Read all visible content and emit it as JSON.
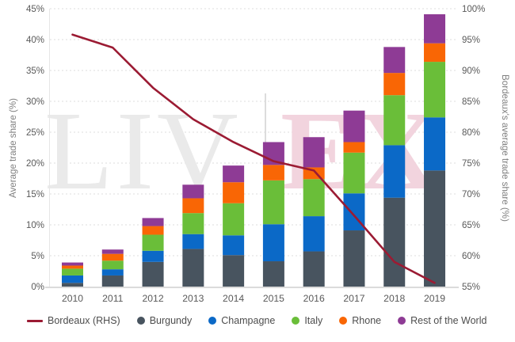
{
  "chart_data": {
    "type": "stacked_bar_with_line_combo",
    "title": "",
    "categories": [
      "2010",
      "2011",
      "2012",
      "2013",
      "2014",
      "2015",
      "2016",
      "2017",
      "2018",
      "2019"
    ],
    "bar_series": [
      {
        "name": "Burgundy",
        "color": "#48545f",
        "values": [
          0.6,
          1.8,
          4.0,
          6.1,
          5.1,
          4.1,
          5.7,
          9.1,
          14.4,
          18.8
        ]
      },
      {
        "name": "Champagne",
        "color": "#0b69c7",
        "values": [
          1.2,
          1.0,
          1.8,
          2.4,
          3.2,
          6.0,
          5.7,
          6.0,
          8.5,
          8.6
        ]
      },
      {
        "name": "Italy",
        "color": "#6abe39",
        "values": [
          1.1,
          1.4,
          2.6,
          3.4,
          5.2,
          7.1,
          6.0,
          6.6,
          8.1,
          9.0
        ]
      },
      {
        "name": "Rhone",
        "color": "#f96605",
        "values": [
          0.5,
          1.1,
          1.4,
          2.4,
          3.4,
          2.5,
          1.9,
          1.7,
          3.6,
          3.0
        ]
      },
      {
        "name": "Rest of the World",
        "color": "#8e3b95",
        "values": [
          0.5,
          0.7,
          1.3,
          2.2,
          2.7,
          3.7,
          4.9,
          5.1,
          4.2,
          4.7
        ]
      }
    ],
    "stacked_totals": [
      3.9,
      6.0,
      11.1,
      16.5,
      19.6,
      23.4,
      24.2,
      28.5,
      38.8,
      44.1
    ],
    "line_series": {
      "name": "Bordeaux (RHS)",
      "color": "#9b1b33",
      "axis": "right",
      "values": [
        95.8,
        93.7,
        87.2,
        82.1,
        78.4,
        75.3,
        73.8,
        66.5,
        59.0,
        55.6
      ]
    },
    "left_axis": {
      "label": "Average trade share (%)",
      "min": 0,
      "max": 45,
      "step": 5,
      "tick_suffix": "%"
    },
    "right_axis": {
      "label": "Bordeaux's average trade share (%)",
      "min": 55,
      "max": 100,
      "step": 5,
      "tick_suffix": "%"
    },
    "grid": {
      "horizontal_dashed": true,
      "color": "#dcdcdc"
    },
    "legend_position": "bottom"
  },
  "legend": {
    "items": [
      {
        "label": "Bordeaux (RHS)",
        "marker": "line",
        "color": "#9b1b33"
      },
      {
        "label": "Burgundy",
        "marker": "dot",
        "color": "#48545f"
      },
      {
        "label": "Champagne",
        "marker": "dot",
        "color": "#0b69c7"
      },
      {
        "label": "Italy",
        "marker": "dot",
        "color": "#6abe39"
      },
      {
        "label": "Rhone",
        "marker": "dot",
        "color": "#f96605"
      },
      {
        "label": "Rest of the World",
        "marker": "dot",
        "color": "#8e3b95"
      }
    ]
  },
  "watermark": {
    "text_left": "LIV",
    "text_right": "EX",
    "gray": "#eaeaea",
    "pink": "#f2d4de",
    "divider_color": "#dcdcdc"
  },
  "style_colors": {
    "tick_text": "#595959",
    "axis_title_text": "#7f7f7f",
    "axis_line": "#cfcfcf"
  }
}
